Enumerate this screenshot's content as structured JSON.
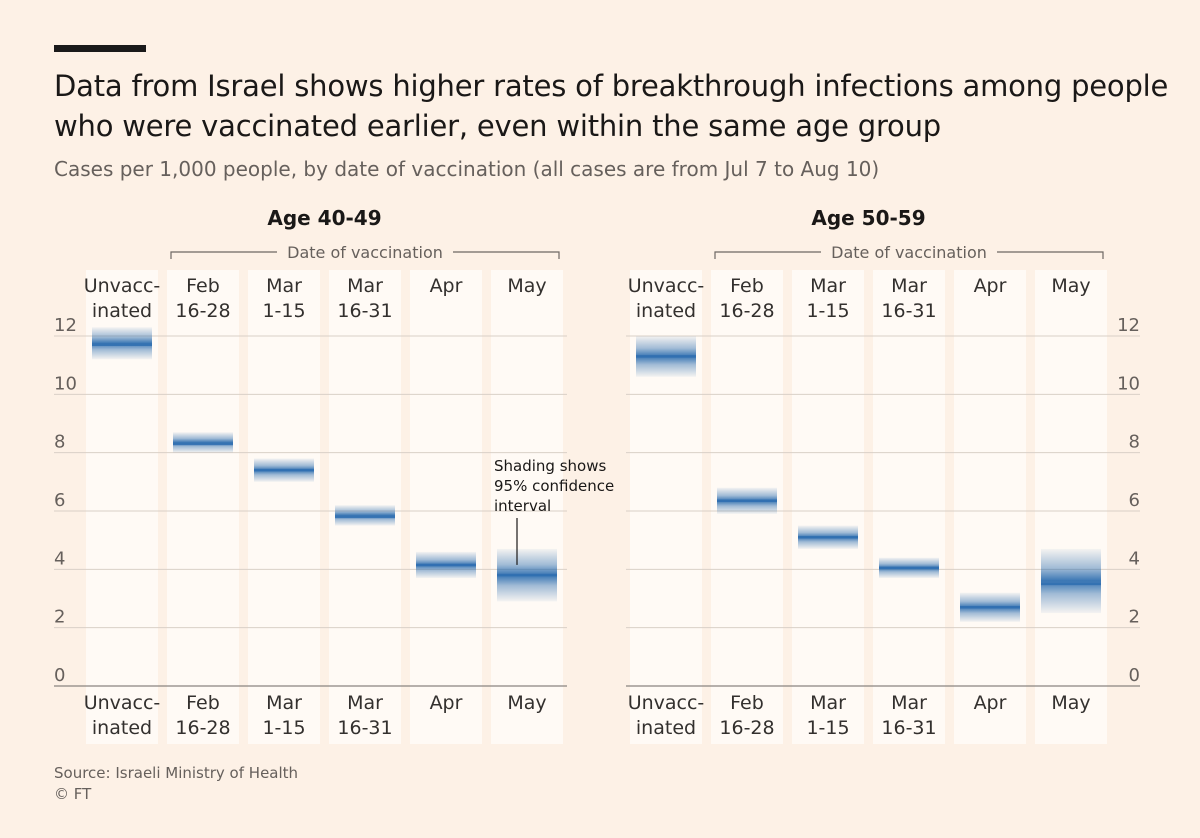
{
  "header": {
    "title": "Data from Israel shows higher rates of breakthrough infections among people who were vaccinated earlier, even within the same age group",
    "subtitle": "Cases per 1,000 people, by date of vaccination (all cases are from Jul 7 to Aug 10)"
  },
  "footer": {
    "source": "Source: Israeli Ministry of Health",
    "credit": "© FT"
  },
  "colors": {
    "background": "#fdf1e6",
    "column": "#fffaf5",
    "band": "#2f6fb0",
    "gridline": "#d9d0c7",
    "text": "#33302e",
    "muted": "#66605c"
  },
  "chart_data": [
    {
      "type": "confidence-interval",
      "title": "Age 40-49",
      "group_label": "Date of vaccination",
      "ylabel": "Cases per 1,000 people",
      "ylim": [
        0,
        12
      ],
      "yticks": [
        0,
        2,
        4,
        6,
        8,
        10,
        12
      ],
      "y_axis_side": "left",
      "categories": [
        {
          "label": [
            "Unvacc-",
            "inated"
          ],
          "value": 11.7,
          "low": 11.2,
          "high": 12.3
        },
        {
          "label": [
            "Feb",
            "16-28"
          ],
          "value": 8.3,
          "low": 8.0,
          "high": 8.7
        },
        {
          "label": [
            "Mar",
            "1-15"
          ],
          "value": 7.4,
          "low": 7.0,
          "high": 7.8
        },
        {
          "label": [
            "Mar",
            "16-31"
          ],
          "value": 5.8,
          "low": 5.5,
          "high": 6.2
        },
        {
          "label": [
            "Apr"
          ],
          "value": 4.15,
          "low": 3.7,
          "high": 4.6
        },
        {
          "label": [
            "May"
          ],
          "value": 3.8,
          "low": 2.9,
          "high": 4.7
        }
      ],
      "annotation": {
        "text": [
          "Shading shows",
          "95% confidence",
          "interval"
        ],
        "category_index": 5
      }
    },
    {
      "type": "confidence-interval",
      "title": "Age 50-59",
      "group_label": "Date of vaccination",
      "ylabel": "Cases per 1,000 people",
      "ylim": [
        0,
        12
      ],
      "yticks": [
        0,
        2,
        4,
        6,
        8,
        10,
        12
      ],
      "y_axis_side": "right",
      "categories": [
        {
          "label": [
            "Unvacc-",
            "inated"
          ],
          "value": 11.3,
          "low": 10.6,
          "high": 12.0
        },
        {
          "label": [
            "Feb",
            "16-28"
          ],
          "value": 6.35,
          "low": 5.9,
          "high": 6.8
        },
        {
          "label": [
            "Mar",
            "1-15"
          ],
          "value": 5.1,
          "low": 4.7,
          "high": 5.5
        },
        {
          "label": [
            "Mar",
            "16-31"
          ],
          "value": 4.05,
          "low": 3.7,
          "high": 4.4
        },
        {
          "label": [
            "Apr"
          ],
          "value": 2.7,
          "low": 2.2,
          "high": 3.2
        },
        {
          "label": [
            "May"
          ],
          "value": 3.5,
          "low": 2.5,
          "high": 4.7
        }
      ]
    }
  ]
}
